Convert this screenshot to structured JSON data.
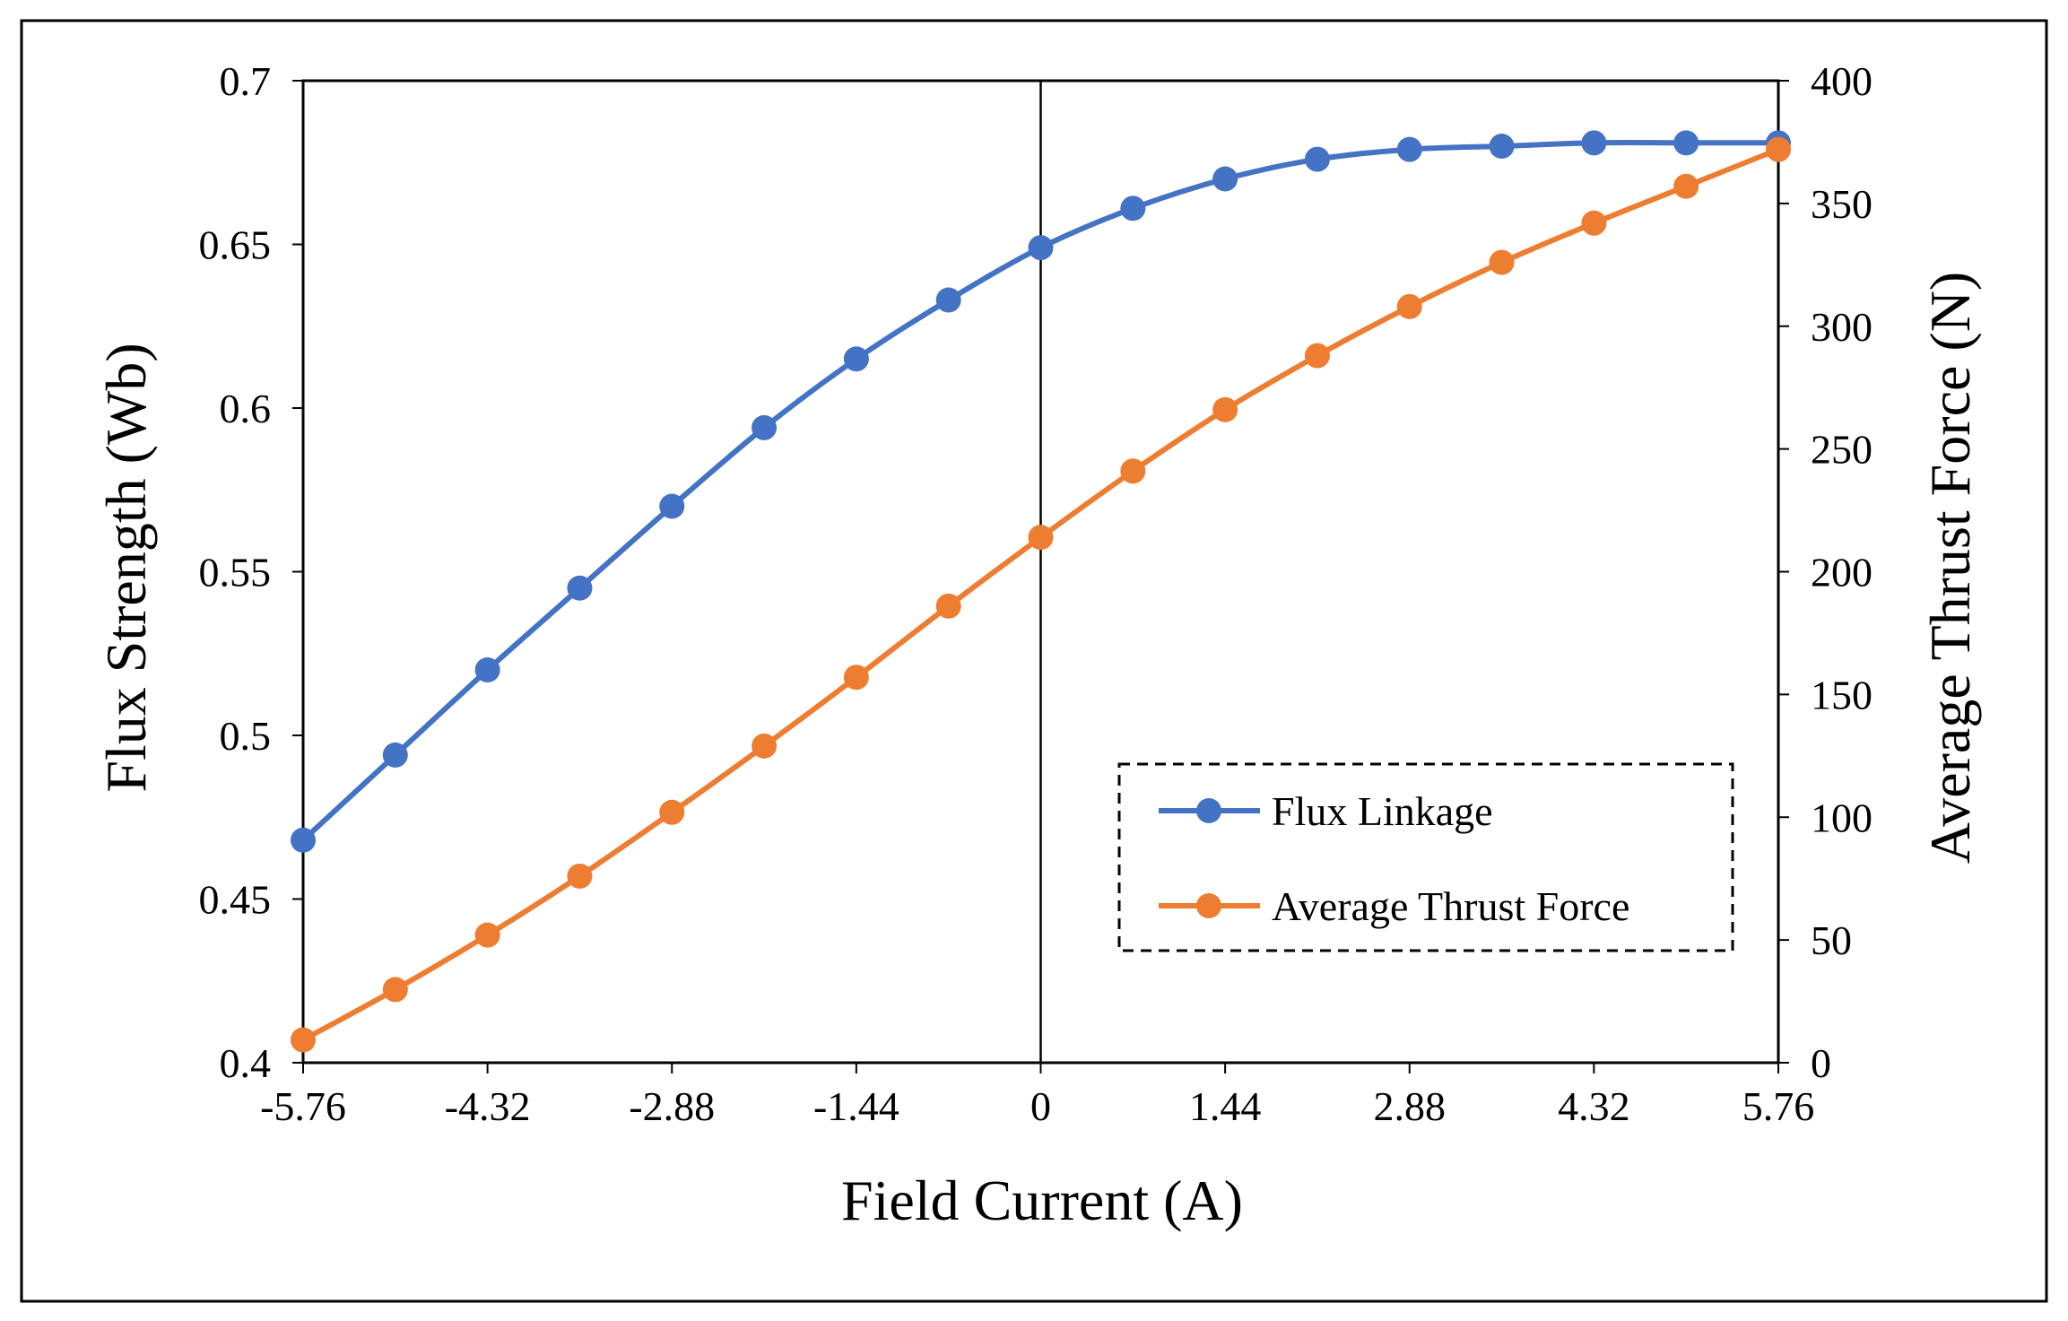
{
  "chart_data": {
    "type": "line",
    "title": "",
    "xlabel": "Field Current (A)",
    "ylabel_left": "Flux Strength (Wb)",
    "ylabel_right": "Average Thrust Force (N)",
    "xlim": [
      -5.76,
      5.76
    ],
    "ylim_left": [
      0.4,
      0.7
    ],
    "ylim_right": [
      0,
      400
    ],
    "x_tick_labels": [
      "-5.76",
      "-4.32",
      "-2.88",
      "-1.44",
      "0",
      "1.44",
      "2.88",
      "4.32",
      "5.76"
    ],
    "y_left_tick_labels": [
      "0.4",
      "0.45",
      "0.5",
      "0.55",
      "0.6",
      "0.65",
      "0.7"
    ],
    "y_right_tick_labels": [
      "0",
      "50",
      "100",
      "150",
      "200",
      "250",
      "300",
      "350",
      "400"
    ],
    "x": [
      -5.76,
      -5.04,
      -4.32,
      -3.6,
      -2.88,
      -2.16,
      -1.44,
      -0.72,
      0,
      0.72,
      1.44,
      2.16,
      2.88,
      3.6,
      4.32,
      5.04,
      5.76
    ],
    "series": [
      {
        "name": "Flux Linkage",
        "axis": "left",
        "color": "#4472C4",
        "values": [
          0.468,
          0.494,
          0.52,
          0.545,
          0.57,
          0.594,
          0.615,
          0.633,
          0.649,
          0.661,
          0.67,
          0.676,
          0.679,
          0.68,
          0.681,
          0.681,
          0.681
        ]
      },
      {
        "name": "Average Thrust Force",
        "axis": "right",
        "color": "#ED7D31",
        "values": [
          9.3,
          29.8,
          52,
          76,
          102,
          129,
          157,
          186,
          214,
          241,
          266,
          288,
          308,
          326,
          342,
          357,
          372
        ]
      }
    ],
    "legend": {
      "position": "bottom-right",
      "entries": [
        "Flux Linkage",
        "Average Thrust Force"
      ]
    },
    "reference_line_x": 0,
    "grid": false
  }
}
